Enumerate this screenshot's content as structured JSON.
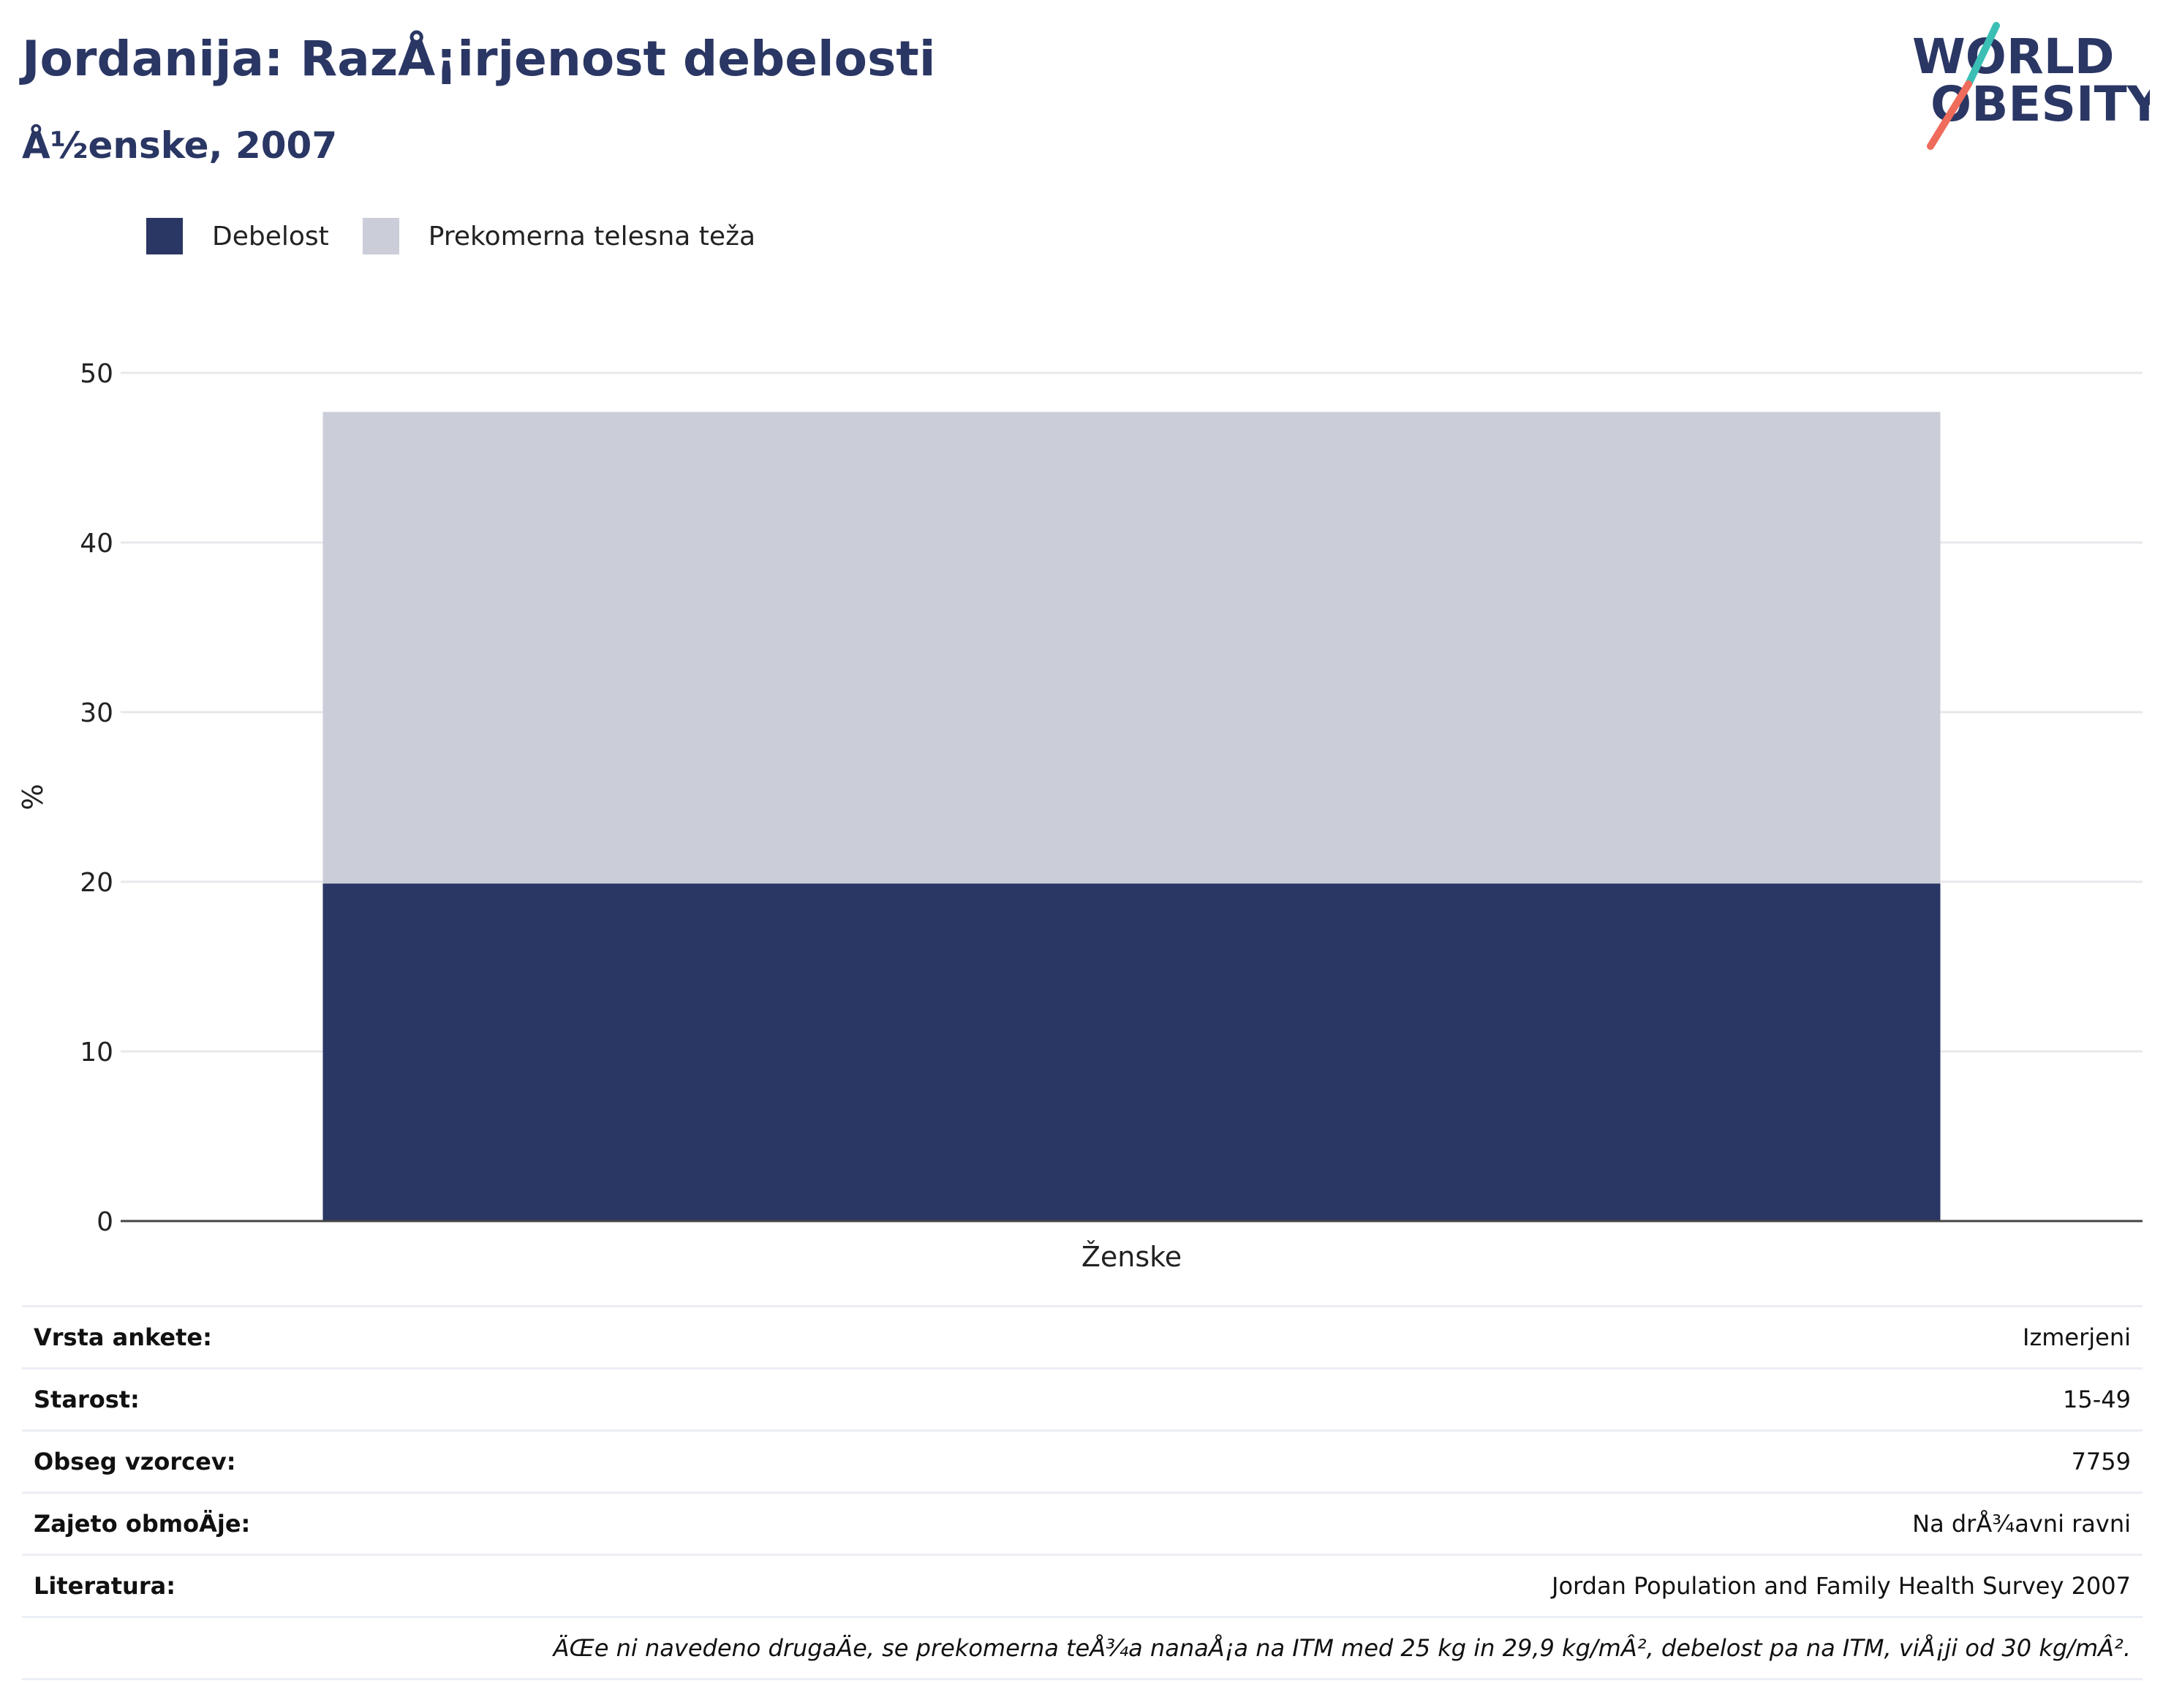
{
  "header": {
    "title": "Jordanija: RazÅ¡irjenost debelosti",
    "subtitle": "Å½enske, 2007"
  },
  "logo": {
    "line1": "WORLD",
    "line2": "OBESITY",
    "accent_teal": "#3bbfb5",
    "accent_coral": "#ef6b5b"
  },
  "colors": {
    "obesity": "#2a3663",
    "overweight": "#cbcdd8",
    "grid": "#e8e8ec",
    "axis": "#444444"
  },
  "legend": {
    "items": [
      {
        "label": "Debelost",
        "color": "#2a3663"
      },
      {
        "label": "Prekomerna telesna teža",
        "color": "#cbcdd8"
      }
    ]
  },
  "chart_data": {
    "type": "bar",
    "stacked": true,
    "categories": [
      "Ženske"
    ],
    "series": [
      {
        "name": "Debelost",
        "values": [
          19.9
        ]
      },
      {
        "name": "Prekomerna telesna teža",
        "values": [
          27.8
        ]
      }
    ],
    "ylabel": "%",
    "ylim": [
      0,
      50
    ],
    "yticks": [
      0,
      10,
      20,
      30,
      40,
      50
    ],
    "grid": true,
    "legend_position": "top-left"
  },
  "info": {
    "rows": [
      {
        "label": "Vrsta ankete:",
        "value": "Izmerjeni"
      },
      {
        "label": "Starost:",
        "value": "15-49"
      },
      {
        "label": "Obseg vzorcev:",
        "value": "7759"
      },
      {
        "label": "Zajeto obmoÄje:",
        "value": "Na drÅ¾avni ravni"
      },
      {
        "label": "Literatura:",
        "value": "Jordan Population and Family Health Survey 2007"
      }
    ],
    "note": "ÄŒe ni navedeno drugaÄe, se prekomerna teÅ¾a nanaÅ¡a na ITM med 25 kg in 29,9 kg/mÂ², debelost pa na ITM, viÅ¡ji od 30 kg/mÂ²."
  }
}
